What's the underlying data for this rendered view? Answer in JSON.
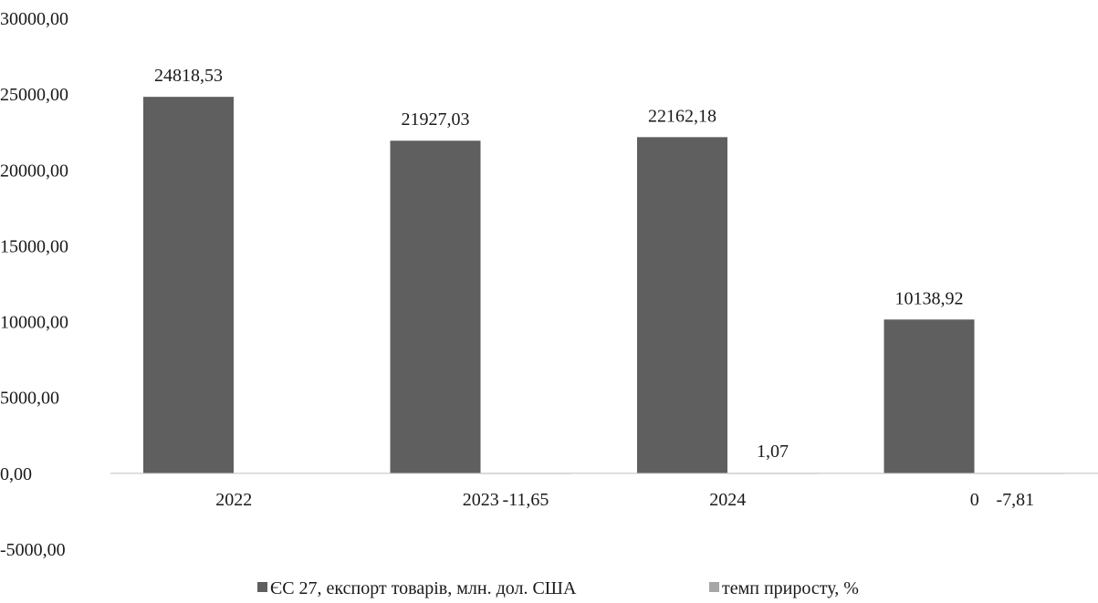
{
  "chart_data": {
    "type": "bar",
    "title": "",
    "xlabel": "",
    "ylabel": "",
    "categories": [
      "2022",
      "2023",
      "2024",
      "0"
    ],
    "series": [
      {
        "name": "ЄС 27, експорт товарів, млн. дол. США",
        "values": [
          24818.53,
          21927.03,
          22162.18,
          10138.92
        ],
        "labels": [
          "24818,53",
          "21927,03",
          "22162,18",
          "10138,92"
        ],
        "color": "#5f5f5f"
      },
      {
        "name": "темп приросту, %",
        "values": [
          null,
          -11.65,
          1.07,
          -7.81
        ],
        "labels": [
          "",
          "-11,65",
          "1,07",
          "-7,81"
        ],
        "color": "#a6a6a6"
      }
    ],
    "ylim": [
      -5000,
      30000
    ],
    "yticks": [
      -5000,
      0,
      5000,
      10000,
      15000,
      20000,
      25000,
      30000
    ],
    "ytick_labels": [
      "-5000,00",
      "0,00",
      "5000,00",
      "10000,00",
      "15000,00",
      "20000,00",
      "25000,00",
      "30000,00"
    ],
    "grid": false,
    "legend": "bottom"
  }
}
